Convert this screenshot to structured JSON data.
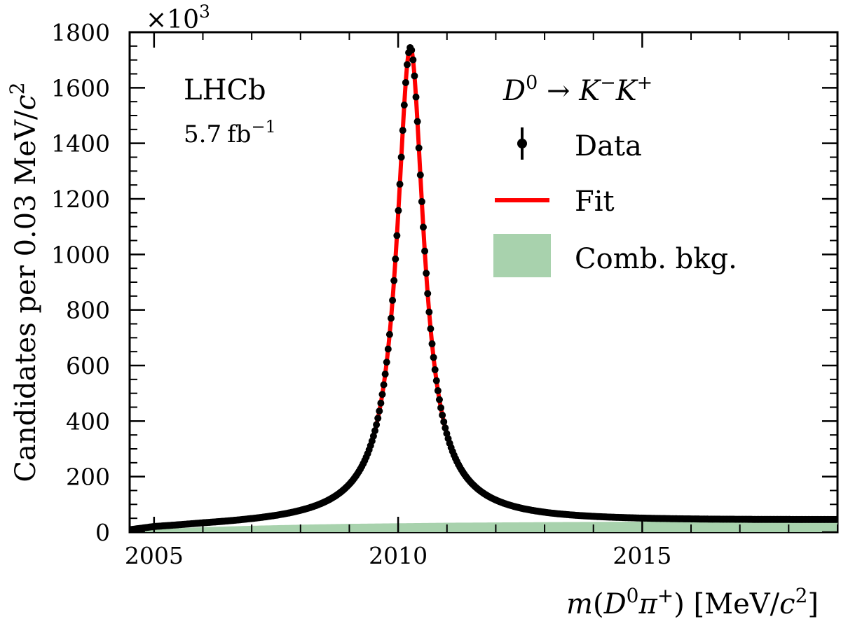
{
  "chart_data": {
    "type": "scatter",
    "experiment": "LHCb",
    "luminosity_value": "5.7",
    "luminosity_unit_base": "fb",
    "luminosity_unit_exp": "−1",
    "y_multiplier_base": "×10",
    "y_multiplier_exp": "3",
    "xlabel": {
      "m": "m",
      "lparen": "(",
      "D": "D",
      "D_sup": "0",
      "pi": "π",
      "pi_sup": "+",
      "rparen": ")",
      "unit_open": " [MeV/",
      "c": "c",
      "c_sup": "2",
      "unit_close": "]"
    },
    "ylabel": {
      "text": "Candidates per 0.03  MeV/",
      "c": "c",
      "c_sup": "2"
    },
    "decay": {
      "D": "D",
      "D_sup": "0",
      "arrow": " → ",
      "K1": "K",
      "K1_sup": "−",
      "K2": "K",
      "K2_sup": "+"
    },
    "xlim": [
      2004.5,
      2019.0
    ],
    "ylim": [
      0,
      1800
    ],
    "x_ticks": [
      2005,
      2010,
      2015
    ],
    "y_ticks": [
      0,
      200,
      400,
      600,
      800,
      1000,
      1200,
      1400,
      1600,
      1800
    ],
    "legend": {
      "position": "top-right",
      "entries": [
        {
          "label": "Data",
          "kind": "points",
          "color": "#000000"
        },
        {
          "label": "Fit",
          "kind": "line",
          "color": "#ff0000"
        },
        {
          "label": "Comb. bkg.",
          "kind": "area",
          "color": "#a8d2ad"
        }
      ]
    },
    "signal": {
      "peak_x": 2010.25,
      "peak_y": 1745,
      "narrow_sigma": 0.33,
      "narrow_fraction": 0.96,
      "wide_sigma": 1.3
    },
    "combinatorial_background": {
      "threshold_x": 2004.5,
      "x": [
        2004.5,
        2005.0,
        2006.0,
        2007.0,
        2008.0,
        2009.0,
        2010.0,
        2011.0,
        2012.0,
        2013.0,
        2014.0,
        2015.0,
        2016.0,
        2017.0,
        2018.0,
        2019.0
      ],
      "y": [
        0,
        10,
        18,
        23,
        27,
        30,
        32,
        34,
        35,
        36,
        37,
        38,
        39,
        40,
        41,
        42
      ]
    },
    "data_points_x_step": 0.03
  }
}
